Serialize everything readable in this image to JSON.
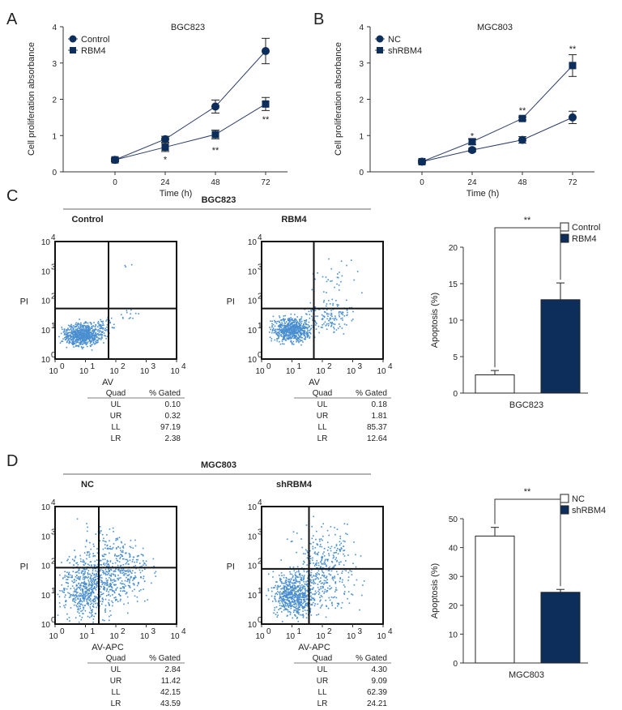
{
  "colors": {
    "navy": "#0d2d5a",
    "scatter": "#4a8fd0",
    "line": "#2d3e6a"
  },
  "chart_data": [
    {
      "id": "A",
      "panel": "A",
      "type": "line",
      "title": "BGC823",
      "xlabel": "Time (h)",
      "ylabel": "Cell proliferation absorbance",
      "x": [
        0,
        24,
        48,
        72
      ],
      "ylim": [
        0,
        4
      ],
      "yticks": [
        "0",
        "1",
        "2",
        "3",
        "4"
      ],
      "xticks": [
        "0",
        "24",
        "48",
        "72"
      ],
      "series": [
        {
          "name": "Control",
          "marker": "circle",
          "values": [
            0.33,
            0.9,
            1.8,
            3.33
          ],
          "err": [
            0.05,
            0.08,
            0.18,
            0.35
          ]
        },
        {
          "name": "RBM4",
          "marker": "square",
          "values": [
            0.33,
            0.68,
            1.03,
            1.87
          ],
          "err": [
            0.03,
            0.12,
            0.12,
            0.18
          ]
        }
      ],
      "annotations": [
        {
          "x": 24,
          "y": 0.35,
          "text": "*"
        },
        {
          "x": 48,
          "y": 0.6,
          "text": "**"
        },
        {
          "x": 72,
          "y": 1.45,
          "text": "**"
        }
      ],
      "legend": "top-left"
    },
    {
      "id": "B",
      "panel": "B",
      "type": "line",
      "title": "MGC803",
      "xlabel": "Time (h)",
      "ylabel": "Cell proliferation absorbance",
      "x": [
        0,
        24,
        48,
        72
      ],
      "ylim": [
        0,
        4
      ],
      "yticks": [
        "0",
        "1",
        "2",
        "3",
        "4"
      ],
      "xticks": [
        "0",
        "24",
        "48",
        "72"
      ],
      "series": [
        {
          "name": "NC",
          "marker": "circle",
          "values": [
            0.28,
            0.6,
            0.88,
            1.5
          ],
          "err": [
            0.04,
            0.05,
            0.09,
            0.17
          ]
        },
        {
          "name": "shRBM4",
          "marker": "square",
          "values": [
            0.28,
            0.83,
            1.47,
            2.93
          ],
          "err": [
            0.04,
            0.08,
            0.04,
            0.3
          ]
        }
      ],
      "annotations": [
        {
          "x": 24,
          "y": 1.0,
          "text": "*"
        },
        {
          "x": 48,
          "y": 1.7,
          "text": "**"
        },
        {
          "x": 72,
          "y": 3.4,
          "text": "**"
        }
      ],
      "legend": "top-left"
    },
    {
      "id": "Cbar",
      "type": "bar",
      "xlabel": "BGC823",
      "ylabel": "Apoptosis (%)",
      "ylim": [
        0,
        20
      ],
      "yticks": [
        "0",
        "5",
        "10",
        "15",
        "20"
      ],
      "series": [
        {
          "name": "Control",
          "value": 2.5,
          "err": 0.6,
          "fill": "white"
        },
        {
          "name": "RBM4",
          "value": 12.8,
          "err": 2.3,
          "fill": "navy"
        }
      ],
      "significance": "**",
      "legend": "top-right"
    },
    {
      "id": "Dbar",
      "type": "bar",
      "xlabel": "MGC803",
      "ylabel": "Apoptosis (%)",
      "ylim": [
        0,
        50
      ],
      "yticks": [
        "0",
        "10",
        "20",
        "30",
        "40",
        "50"
      ],
      "series": [
        {
          "name": "NC",
          "value": 44.0,
          "err": 3.0,
          "fill": "white"
        },
        {
          "name": "shRBM4",
          "value": 24.5,
          "err": 1.0,
          "fill": "navy"
        }
      ],
      "significance": "**",
      "legend": "top-right"
    }
  ],
  "flow": {
    "C": {
      "panel": "C",
      "group": "BGC823",
      "xlabel": "AV",
      "ylabel": "PI",
      "ticks": [
        "10",
        "10",
        "10",
        "10",
        "10"
      ],
      "exps": [
        "0",
        "1",
        "2",
        "3",
        "4"
      ],
      "plots": [
        {
          "title": "Control",
          "table": {
            "head": [
              "Quad",
              "% Gated"
            ],
            "rows": [
              [
                "UL",
                "0.10"
              ],
              [
                "UR",
                "0.32"
              ],
              [
                "LL",
                "97.19"
              ],
              [
                "LR",
                "2.38"
              ]
            ]
          }
        },
        {
          "title": "RBM4",
          "table": {
            "head": [
              "Quad",
              "% Gated"
            ],
            "rows": [
              [
                "UL",
                "0.18"
              ],
              [
                "UR",
                "1.81"
              ],
              [
                "LL",
                "85.37"
              ],
              [
                "LR",
                "12.64"
              ]
            ]
          }
        }
      ]
    },
    "D": {
      "panel": "D",
      "group": "MGC803",
      "xlabel": "AV-APC",
      "ylabel": "PI",
      "ticks": [
        "10",
        "10",
        "10",
        "10",
        "10"
      ],
      "exps": [
        "0",
        "1",
        "2",
        "3",
        "4"
      ],
      "plots": [
        {
          "title": "NC",
          "table": {
            "head": [
              "Quad",
              "% Gated"
            ],
            "rows": [
              [
                "UL",
                "2.84"
              ],
              [
                "UR",
                "11.42"
              ],
              [
                "LL",
                "42.15"
              ],
              [
                "LR",
                "43.59"
              ]
            ]
          }
        },
        {
          "title": "shRBM4",
          "table": {
            "head": [
              "Quad",
              "% Gated"
            ],
            "rows": [
              [
                "UL",
                "4.30"
              ],
              [
                "UR",
                "9.09"
              ],
              [
                "LL",
                "62.39"
              ],
              [
                "LR",
                "24.21"
              ]
            ]
          }
        }
      ]
    }
  }
}
